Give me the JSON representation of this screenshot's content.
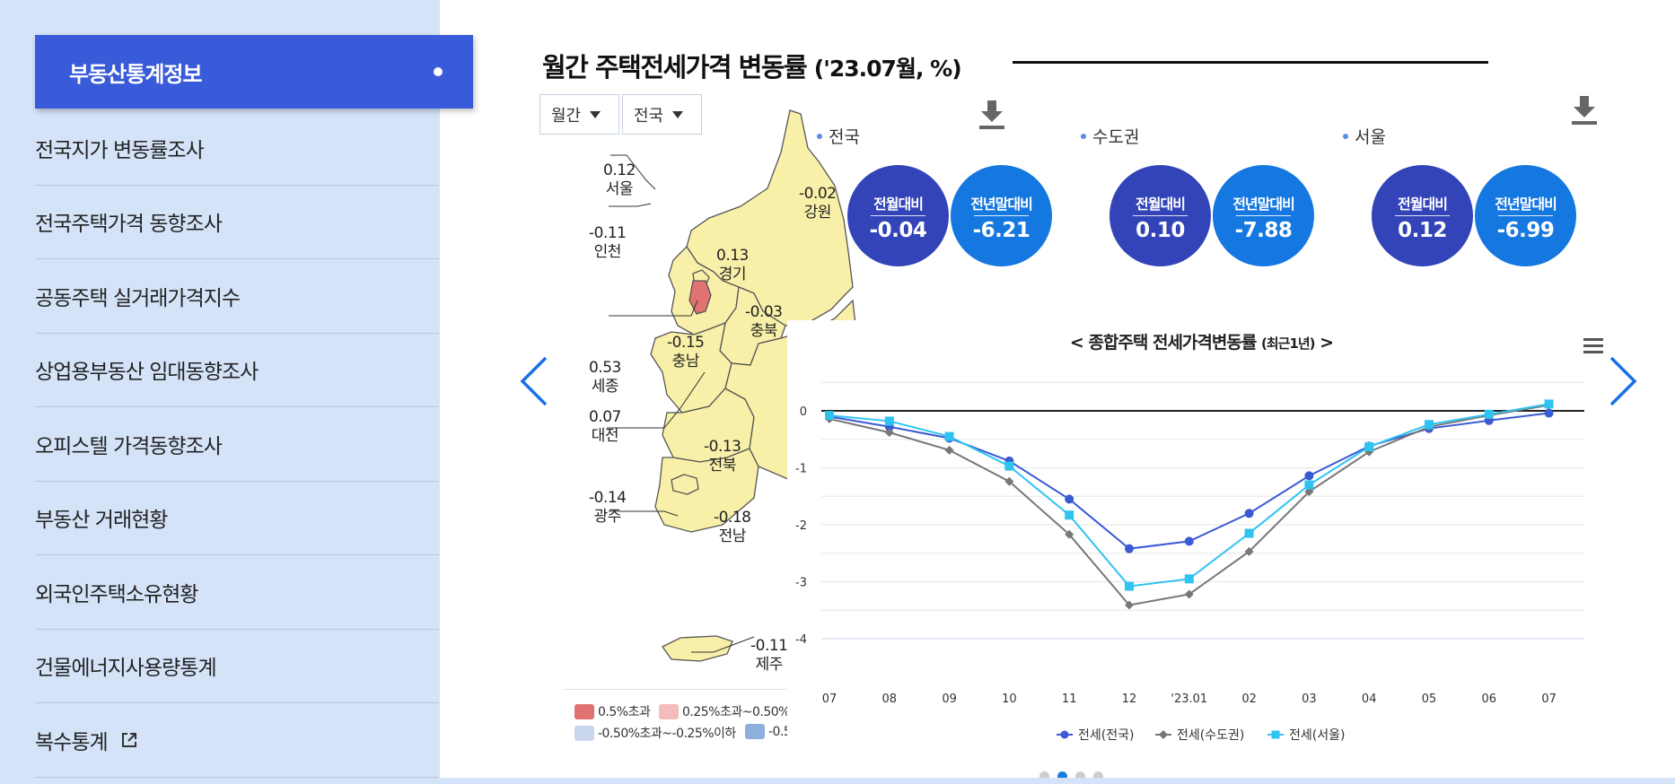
{
  "sidebar": {
    "active": "부동산통계정보",
    "items": [
      "전국지가 변동률조사",
      "전국주택가격 동향조사",
      "공동주택 실거래가격지수",
      "상업용부동산 임대동향조사",
      "오피스텔 가격동향조사",
      "부동산 거래현황",
      "외국인주택소유현황",
      "건물에너지사용량통계",
      "복수통계"
    ]
  },
  "header": {
    "title": "월간 주택전세가격 변동률",
    "subtitle": "('23.07월, %)"
  },
  "filters": {
    "period": "월간",
    "region": "전국"
  },
  "map_labels": [
    {
      "value": "0.12",
      "name": "서울"
    },
    {
      "value": "-0.11",
      "name": "인천"
    },
    {
      "value": "0.13",
      "name": "경기"
    },
    {
      "value": "-0.02",
      "name": "강원"
    },
    {
      "value": "-0.03",
      "name": "충북"
    },
    {
      "value": "-0.15",
      "name": "충남"
    },
    {
      "value": "0.53",
      "name": "세종"
    },
    {
      "value": "0.07",
      "name": "대전"
    },
    {
      "value": "-0.13",
      "name": "전북"
    },
    {
      "value": "-0.14",
      "name": "광주"
    },
    {
      "value": "-0.18",
      "name": "전남"
    },
    {
      "value": "-0.11",
      "name": "제주"
    }
  ],
  "map_legend": {
    "items": [
      "0.5%초과",
      "0.25%초과~0.50%",
      "-0.50%초과~-0.25%이하",
      "-0.5"
    ],
    "colors": [
      "#e07272",
      "#f4bcbc",
      "#c9d6ee",
      "#8eaedb"
    ]
  },
  "summaries": [
    {
      "region": "전국",
      "mom_label": "전월대비",
      "mom": "-0.04",
      "ytd_label": "전년말대비",
      "ytd": "-6.21"
    },
    {
      "region": "수도권",
      "mom_label": "전월대비",
      "mom": "0.10",
      "ytd_label": "전년말대비",
      "ytd": "-7.88"
    },
    {
      "region": "서울",
      "mom_label": "전월대비",
      "mom": "0.12",
      "ytd_label": "전년말대비",
      "ytd": "-6.99"
    }
  ],
  "chart_data": {
    "type": "line",
    "title": "< 종합주택 전세가격변동률",
    "title_small": "(최근1년)",
    "title_end": ">",
    "categories": [
      "07",
      "08",
      "09",
      "10",
      "11",
      "12",
      "'23.01",
      "02",
      "03",
      "04",
      "05",
      "06",
      "07"
    ],
    "ylim": [
      -4,
      0.5
    ],
    "yticks": [
      0,
      -1,
      -2,
      -3,
      -4
    ],
    "series": [
      {
        "name": "전세(전국)",
        "color": "#3a5ad4",
        "marker": "circle",
        "values": [
          -0.1,
          -0.28,
          -0.48,
          -0.88,
          -1.55,
          -2.42,
          -2.29,
          -1.8,
          -1.14,
          -0.62,
          -0.31,
          -0.17,
          -0.04
        ]
      },
      {
        "name": "전세(수도권)",
        "color": "#777777",
        "marker": "diamond",
        "values": [
          -0.14,
          -0.38,
          -0.69,
          -1.24,
          -2.17,
          -3.41,
          -3.22,
          -2.47,
          -1.42,
          -0.72,
          -0.28,
          -0.08,
          0.1
        ]
      },
      {
        "name": "전세(서울)",
        "color": "#2fc3f2",
        "marker": "square",
        "values": [
          -0.08,
          -0.18,
          -0.45,
          -0.97,
          -1.83,
          -3.08,
          -2.95,
          -2.15,
          -1.3,
          -0.63,
          -0.24,
          -0.06,
          0.12
        ]
      }
    ]
  },
  "pagination": {
    "count": 4,
    "active": 1
  }
}
